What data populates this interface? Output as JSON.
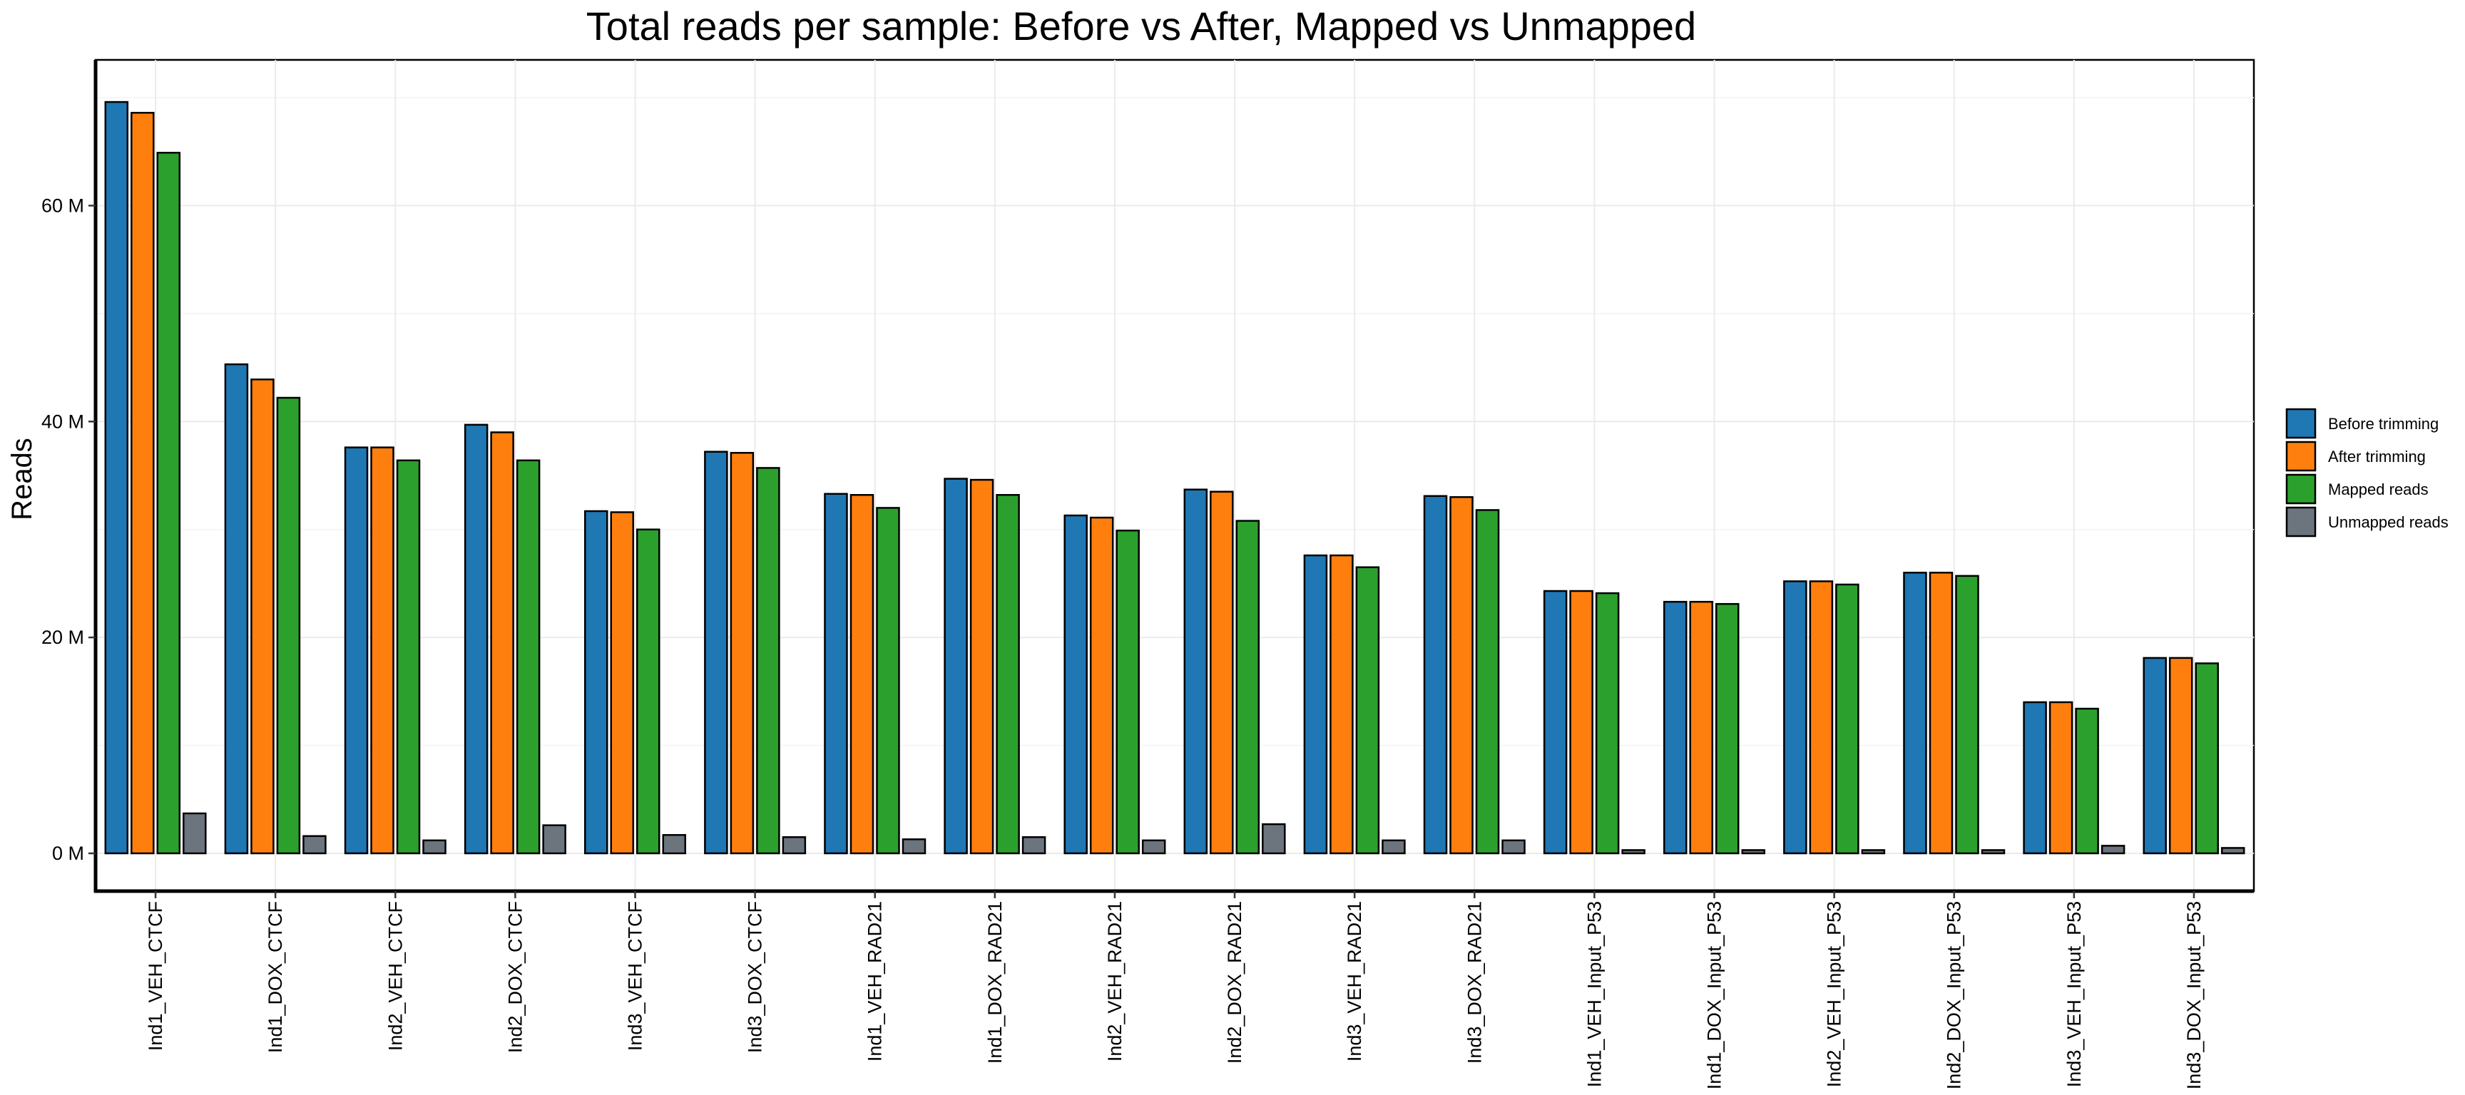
{
  "chart_data": {
    "type": "bar",
    "title": "Total reads per sample: Before vs After, Mapped vs Unmapped",
    "xlabel": "",
    "ylabel": "Reads",
    "ylim": [
      -3.5,
      73.5
    ],
    "y_unit_label": "M",
    "yticks": [
      {
        "value": 0,
        "label": "0 M"
      },
      {
        "value": 20,
        "label": "20 M"
      },
      {
        "value": 40,
        "label": "40 M"
      },
      {
        "value": 60,
        "label": "60 M"
      }
    ],
    "grid": true,
    "legend_position": "right",
    "categories": [
      "Ind1_VEH_CTCF",
      "Ind1_DOX_CTCF",
      "Ind2_VEH_CTCF",
      "Ind2_DOX_CTCF",
      "Ind3_VEH_CTCF",
      "Ind3_DOX_CTCF",
      "Ind1_VEH_RAD21",
      "Ind1_DOX_RAD21",
      "Ind2_VEH_RAD21",
      "Ind2_DOX_RAD21",
      "Ind3_VEH_RAD21",
      "Ind3_DOX_RAD21",
      "Ind1_VEH_Input_P53",
      "Ind1_DOX_Input_P53",
      "Ind2_VEH_Input_P53",
      "Ind2_DOX_Input_P53",
      "Ind3_VEH_Input_P53",
      "Ind3_DOX_Input_P53"
    ],
    "series": [
      {
        "name": "Before trimming",
        "color": "#1f77b4",
        "values": [
          69.6,
          45.3,
          37.6,
          39.7,
          31.7,
          37.2,
          33.3,
          34.7,
          31.3,
          33.7,
          27.6,
          33.1,
          24.3,
          23.3,
          25.2,
          26.0,
          14.0,
          18.1
        ]
      },
      {
        "name": "After trimming",
        "color": "#ff7f0e",
        "values": [
          68.6,
          43.9,
          37.6,
          39.0,
          31.6,
          37.1,
          33.2,
          34.6,
          31.1,
          33.5,
          27.6,
          33.0,
          24.3,
          23.3,
          25.2,
          26.0,
          14.0,
          18.1
        ]
      },
      {
        "name": "Mapped reads",
        "color": "#2ca02c",
        "values": [
          64.9,
          42.2,
          36.4,
          36.4,
          30.0,
          35.7,
          32.0,
          33.2,
          29.9,
          30.8,
          26.5,
          31.8,
          24.1,
          23.1,
          24.9,
          25.7,
          13.4,
          17.6
        ]
      },
      {
        "name": "Unmapped reads",
        "color": "#6c757d",
        "values": [
          3.7,
          1.6,
          1.2,
          2.6,
          1.7,
          1.5,
          1.3,
          1.5,
          1.2,
          2.7,
          1.2,
          1.2,
          0.3,
          0.3,
          0.3,
          0.3,
          0.7,
          0.5
        ]
      }
    ]
  }
}
